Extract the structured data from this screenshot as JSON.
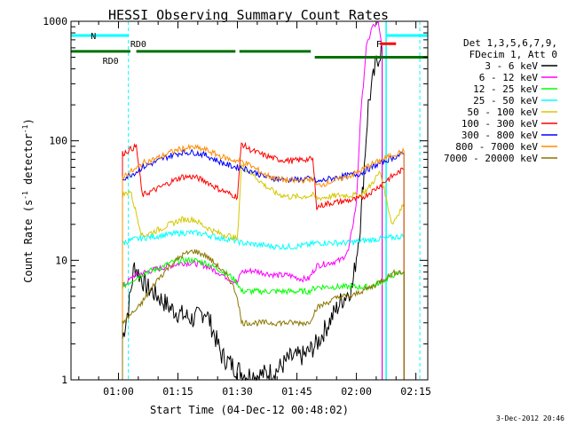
{
  "chart_data": {
    "type": "line",
    "title": "HESSI Observing Summary Count Rates",
    "xlabel": "Start Time (04-Dec-12 00:48:02)",
    "ylabel": "Count Rate (s⁻¹ detector⁻¹)",
    "ylabel_text": "Count Rate (s",
    "ylabel_sup1": "-1",
    "ylabel_mid": " detector",
    "ylabel_sup2": "-1",
    "ylabel_end": ")",
    "y_scale": "log",
    "ylim": [
      1,
      1000
    ],
    "xlim_minutes": [
      48.03,
      138.0
    ],
    "x_ticks": [
      {
        "m": 60,
        "label": "01:00"
      },
      {
        "m": 75,
        "label": "01:15"
      },
      {
        "m": 90,
        "label": "01:30"
      },
      {
        "m": 105,
        "label": "01:45"
      },
      {
        "m": 120,
        "label": "02:00"
      },
      {
        "m": 135,
        "label": "02:15"
      }
    ],
    "y_ticks": [
      {
        "v": 1,
        "label": "1"
      },
      {
        "v": 10,
        "label": "10"
      },
      {
        "v": 100,
        "label": "100"
      },
      {
        "v": 1000,
        "label": "1000"
      }
    ],
    "legend_header": [
      "Det 1,3,5,6,7,9,",
      "FDecim 1, Att 0"
    ],
    "legend_placement": "right",
    "series": [
      {
        "name": "3 - 6 keV",
        "color": "#000000",
        "points": [
          [
            61,
            2.2
          ],
          [
            62.5,
            4
          ],
          [
            64,
            9
          ],
          [
            67,
            6
          ],
          [
            70,
            5
          ],
          [
            73,
            4
          ],
          [
            76,
            3.5
          ],
          [
            79,
            3.2
          ],
          [
            82,
            3.8
          ],
          [
            84,
            2.5
          ],
          [
            86,
            1.6
          ],
          [
            89,
            1.3
          ],
          [
            92,
            1.1
          ],
          [
            96,
            1.1
          ],
          [
            100,
            1.2
          ],
          [
            103,
            1.5
          ],
          [
            107,
            1.6
          ],
          [
            110,
            2
          ],
          [
            113,
            3
          ],
          [
            116,
            4.5
          ],
          [
            119,
            6
          ],
          [
            121,
            20
          ],
          [
            123,
            200
          ],
          [
            125,
            450
          ],
          [
            126.5,
            600
          ]
        ]
      },
      {
        "name": "6 - 12 keV",
        "color": "#ff00ff",
        "points": [
          [
            61,
            6
          ],
          [
            64,
            7.5
          ],
          [
            67,
            8
          ],
          [
            70,
            8.5
          ],
          [
            73,
            9
          ],
          [
            76,
            9.5
          ],
          [
            79,
            9.5
          ],
          [
            82,
            9
          ],
          [
            85,
            8
          ],
          [
            88,
            7
          ],
          [
            90,
            6.5
          ],
          [
            91,
            8
          ],
          [
            94,
            8.2
          ],
          [
            97,
            7.8
          ],
          [
            100,
            7.5
          ],
          [
            103,
            7.5
          ],
          [
            106,
            7
          ],
          [
            108,
            7
          ],
          [
            110,
            9
          ],
          [
            113,
            9.5
          ],
          [
            116,
            10
          ],
          [
            118,
            12
          ],
          [
            120,
            30
          ],
          [
            121,
            150
          ],
          [
            122.5,
            600
          ],
          [
            124,
            900
          ],
          [
            125.5,
            950
          ],
          [
            126.5,
            600
          ]
        ]
      },
      {
        "name": "12 - 25 keV",
        "color": "#00ff00",
        "points": [
          [
            61,
            6
          ],
          [
            64,
            7
          ],
          [
            67,
            8
          ],
          [
            70,
            8.5
          ],
          [
            73,
            9.5
          ],
          [
            76,
            10
          ],
          [
            79,
            10
          ],
          [
            82,
            9.5
          ],
          [
            85,
            8.5
          ],
          [
            88,
            7.5
          ],
          [
            90,
            6.5
          ],
          [
            91,
            5.5
          ],
          [
            95,
            5.5
          ],
          [
            100,
            5.5
          ],
          [
            104,
            5.5
          ],
          [
            108,
            5.5
          ],
          [
            110,
            6
          ],
          [
            114,
            6
          ],
          [
            118,
            6
          ],
          [
            121,
            6
          ],
          [
            123,
            6
          ],
          [
            126,
            6.5
          ],
          [
            129,
            7.5
          ],
          [
            132,
            8
          ]
        ]
      },
      {
        "name": "25 - 50 keV",
        "color": "#00ffff",
        "points": [
          [
            61,
            14
          ],
          [
            64,
            15
          ],
          [
            67,
            15.5
          ],
          [
            70,
            16
          ],
          [
            73,
            16.5
          ],
          [
            76,
            17
          ],
          [
            79,
            17
          ],
          [
            82,
            16.5
          ],
          [
            85,
            15.5
          ],
          [
            88,
            15
          ],
          [
            90,
            14.5
          ],
          [
            91,
            14
          ],
          [
            95,
            13.5
          ],
          [
            100,
            13
          ],
          [
            104,
            13
          ],
          [
            108,
            13.5
          ],
          [
            110,
            14
          ],
          [
            114,
            14
          ],
          [
            118,
            14
          ],
          [
            121,
            14.5
          ],
          [
            125,
            15
          ],
          [
            129,
            15.5
          ],
          [
            132,
            16
          ]
        ]
      },
      {
        "name": "50 - 100 keV",
        "color": "#d4c800",
        "points": [
          [
            61,
            35
          ],
          [
            63,
            38
          ],
          [
            66,
            16
          ],
          [
            70,
            18
          ],
          [
            73,
            20
          ],
          [
            76,
            22
          ],
          [
            79,
            22
          ],
          [
            82,
            19
          ],
          [
            85,
            17
          ],
          [
            88,
            16
          ],
          [
            90,
            15
          ],
          [
            91,
            62
          ],
          [
            94,
            52
          ],
          [
            97,
            42
          ],
          [
            100,
            36
          ],
          [
            103,
            34
          ],
          [
            106,
            34
          ],
          [
            109,
            35
          ],
          [
            110,
            33
          ],
          [
            113,
            34
          ],
          [
            116,
            35
          ],
          [
            119,
            35
          ],
          [
            121,
            35
          ],
          [
            123,
            40
          ],
          [
            126,
            55
          ],
          [
            129,
            20
          ],
          [
            132,
            30
          ]
        ]
      },
      {
        "name": "100 - 300 keV",
        "color": "#ff0000",
        "points": [
          [
            61,
            78
          ],
          [
            63,
            85
          ],
          [
            64.5,
            90
          ],
          [
            66,
            35
          ],
          [
            70,
            40
          ],
          [
            73,
            45
          ],
          [
            76,
            50
          ],
          [
            79,
            50
          ],
          [
            82,
            46
          ],
          [
            85,
            40
          ],
          [
            88,
            36
          ],
          [
            90,
            34
          ],
          [
            91,
            95
          ],
          [
            93,
            85
          ],
          [
            96,
            77
          ],
          [
            100,
            70
          ],
          [
            104,
            68
          ],
          [
            107,
            70
          ],
          [
            109,
            70
          ],
          [
            110,
            28
          ],
          [
            113,
            30
          ],
          [
            116,
            31
          ],
          [
            119,
            32
          ],
          [
            121,
            33
          ],
          [
            123,
            36
          ],
          [
            125,
            40
          ],
          [
            128,
            48
          ],
          [
            132,
            58
          ]
        ]
      },
      {
        "name": "300 - 800 keV",
        "color": "#0000ff",
        "points": [
          [
            61,
            48
          ],
          [
            63,
            52
          ],
          [
            64.5,
            55
          ],
          [
            66,
            60
          ],
          [
            70,
            68
          ],
          [
            73,
            75
          ],
          [
            76,
            80
          ],
          [
            79,
            80
          ],
          [
            82,
            76
          ],
          [
            85,
            68
          ],
          [
            88,
            62
          ],
          [
            90,
            60
          ],
          [
            91,
            60
          ],
          [
            94,
            55
          ],
          [
            97,
            50
          ],
          [
            100,
            48
          ],
          [
            104,
            47
          ],
          [
            107,
            48
          ],
          [
            109,
            48
          ],
          [
            110,
            45
          ],
          [
            113,
            48
          ],
          [
            116,
            50
          ],
          [
            119,
            52
          ],
          [
            121,
            53
          ],
          [
            123,
            58
          ],
          [
            126,
            65
          ],
          [
            129,
            72
          ],
          [
            132,
            78
          ]
        ]
      },
      {
        "name": "800 - 7000 keV",
        "color": "#ff8c00",
        "points": [
          [
            61,
            50
          ],
          [
            63,
            55
          ],
          [
            64.5,
            58
          ],
          [
            66,
            65
          ],
          [
            70,
            72
          ],
          [
            73,
            80
          ],
          [
            76,
            86
          ],
          [
            79,
            88
          ],
          [
            82,
            84
          ],
          [
            85,
            76
          ],
          [
            88,
            70
          ],
          [
            90,
            68
          ],
          [
            91,
            68
          ],
          [
            94,
            60
          ],
          [
            97,
            52
          ],
          [
            100,
            48
          ],
          [
            104,
            46
          ],
          [
            107,
            47
          ],
          [
            109,
            48
          ],
          [
            110,
            42
          ],
          [
            113,
            45
          ],
          [
            116,
            48
          ],
          [
            119,
            52
          ],
          [
            121,
            56
          ],
          [
            123,
            62
          ],
          [
            126,
            68
          ],
          [
            129,
            76
          ],
          [
            132,
            82
          ]
        ]
      },
      {
        "name": "7000 - 20000 keV",
        "color": "#8b7500",
        "points": [
          [
            61,
            3
          ],
          [
            63,
            3.5
          ],
          [
            65,
            4
          ],
          [
            67,
            5
          ],
          [
            70,
            7
          ],
          [
            73,
            9
          ],
          [
            76,
            11
          ],
          [
            79,
            12
          ],
          [
            82,
            11
          ],
          [
            85,
            9
          ],
          [
            88,
            7
          ],
          [
            90,
            5
          ],
          [
            91,
            3
          ],
          [
            95,
            3
          ],
          [
            100,
            3
          ],
          [
            104,
            3
          ],
          [
            108,
            3
          ],
          [
            110,
            4
          ],
          [
            113,
            4.5
          ],
          [
            116,
            5
          ],
          [
            119,
            5
          ],
          [
            121,
            5.5
          ],
          [
            124,
            6
          ],
          [
            127,
            7
          ],
          [
            130,
            8
          ],
          [
            132,
            8
          ]
        ]
      }
    ],
    "annotations": [
      {
        "text": "N",
        "m": 53,
        "color": "#00ffff"
      },
      {
        "text": "F",
        "m": 125,
        "color": "#ff0000"
      },
      {
        "text": "RD0",
        "m": 56,
        "color": "#006400"
      },
      {
        "text": "RD0",
        "m": 63,
        "color": "#006400"
      }
    ],
    "night_bars": [
      [
        48.03,
        62.5
      ],
      [
        127.5,
        138.0
      ]
    ],
    "saa_bars": [
      [
        48.03,
        63.0
      ],
      [
        64.5,
        89.5
      ],
      [
        90.5,
        108.5
      ],
      [
        109.5,
        138.0
      ]
    ],
    "flare_bar": [
      126,
      130
    ],
    "dashed_vlines": [
      62.5,
      127.5,
      136
    ],
    "solid_vlines": [
      127.5
    ],
    "timestamp": "3-Dec-2012 20:46"
  }
}
